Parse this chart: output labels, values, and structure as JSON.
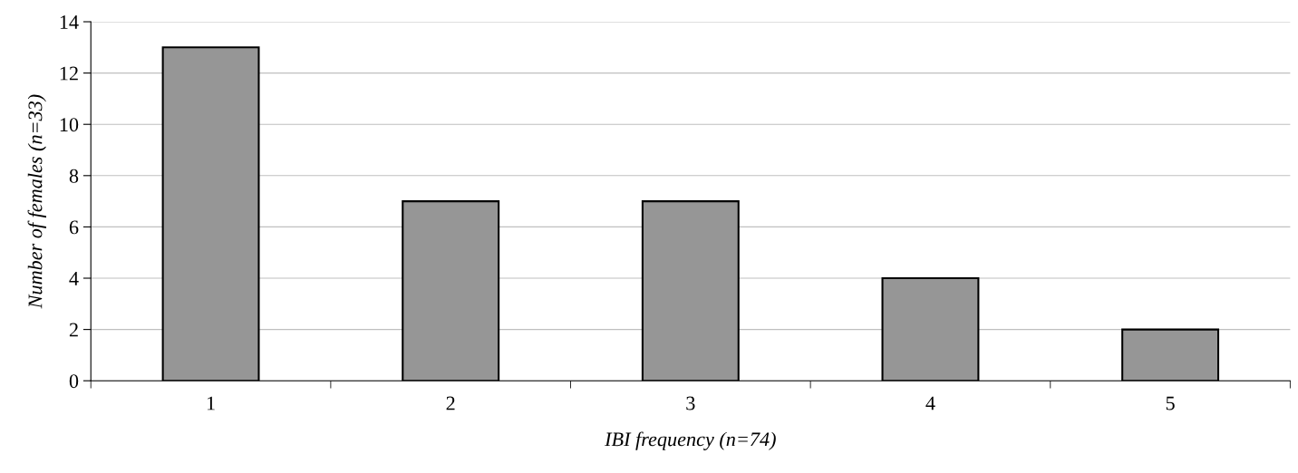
{
  "chart_data": {
    "type": "bar",
    "xlabel": "IBI frequency (n=74)",
    "ylabel": "Number of females (n=33)",
    "categories": [
      "1",
      "2",
      "3",
      "4",
      "5"
    ],
    "values": [
      13,
      7,
      7,
      4,
      2
    ],
    "color": "#969696",
    "ylim": [
      0,
      14
    ],
    "yticks": [
      0,
      2,
      4,
      6,
      8,
      10,
      12,
      14
    ],
    "grid": "y",
    "legend": false
  }
}
